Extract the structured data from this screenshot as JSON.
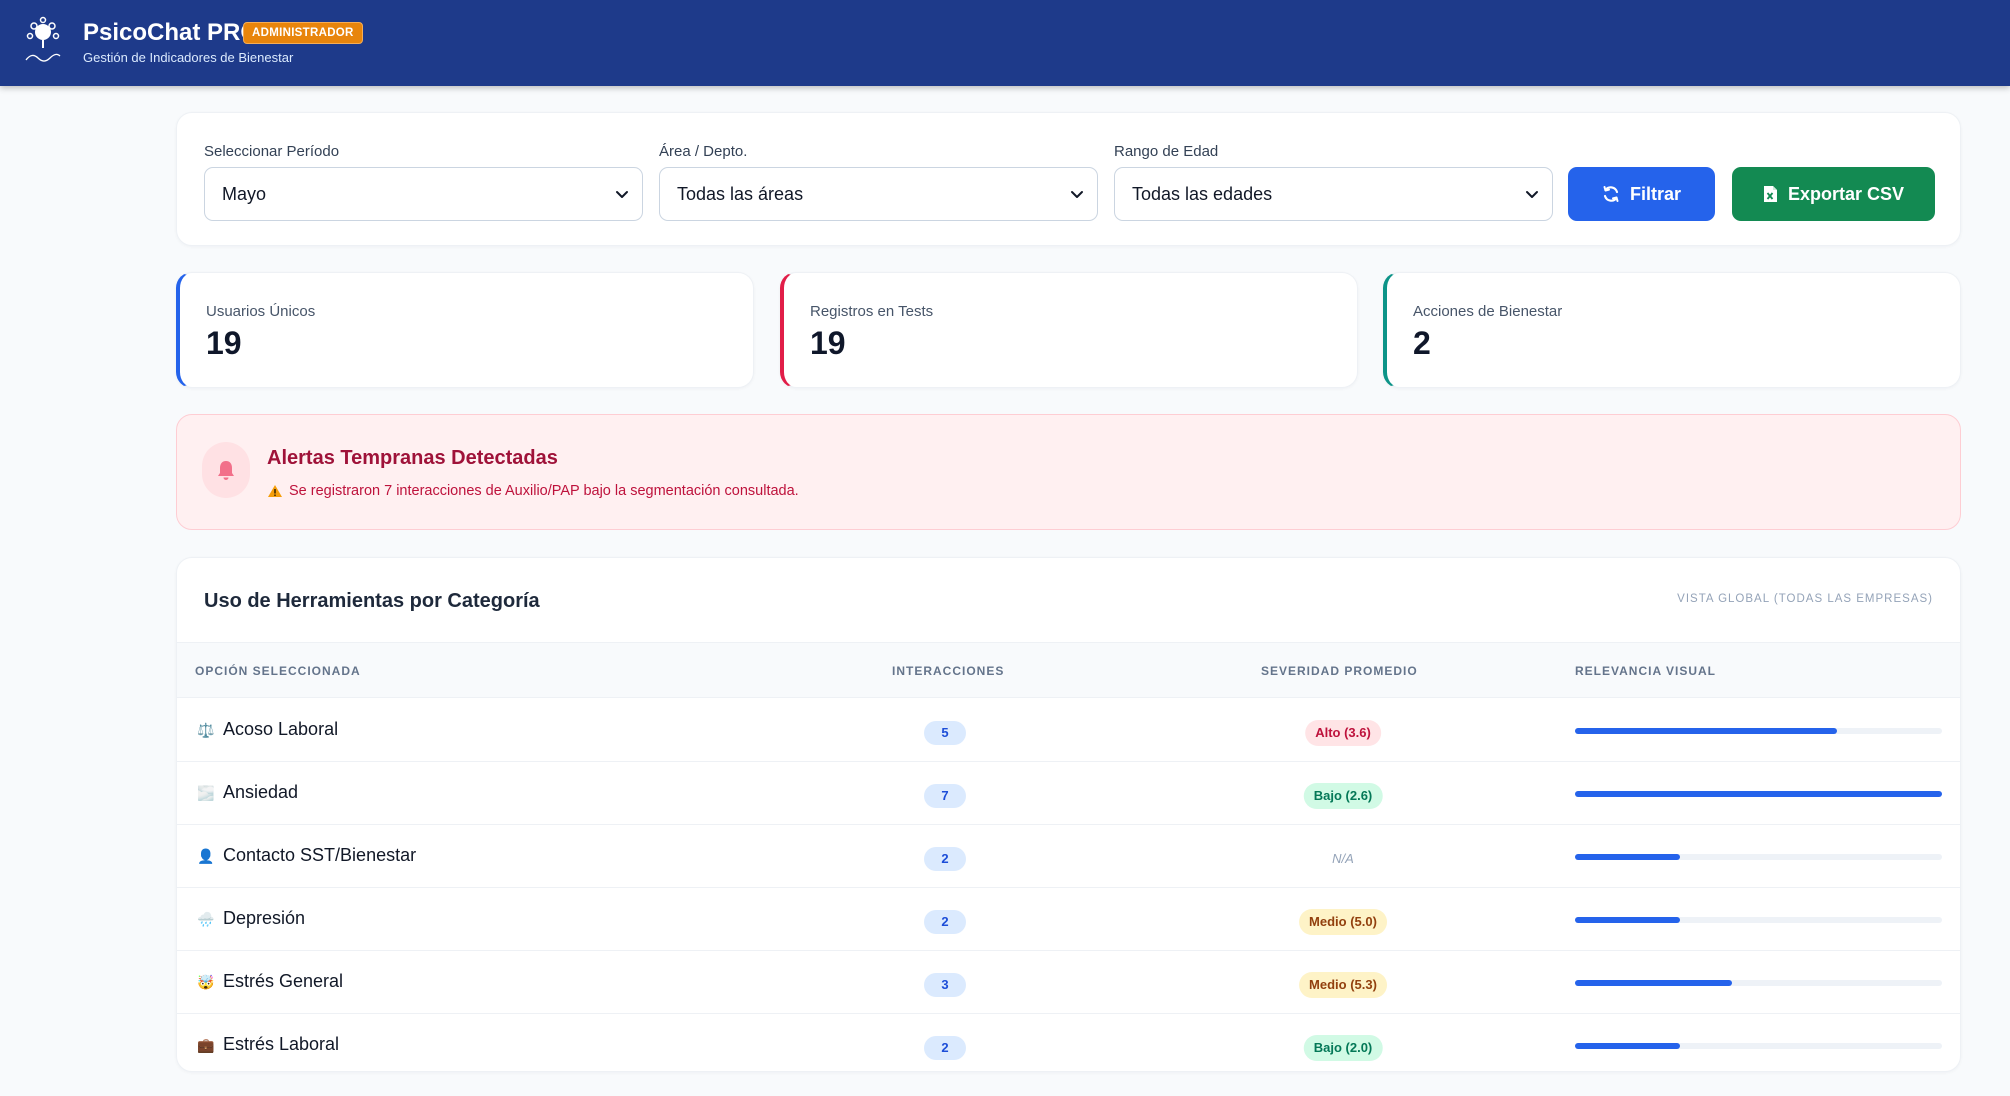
{
  "header": {
    "title": "PsicoChat PRO",
    "role_badge": "ADMINISTRADOR",
    "subtitle": "Gestión de Indicadores de Bienestar",
    "logo_icon": "brain-logo-icon"
  },
  "filters": {
    "period": {
      "label": "Seleccionar Período",
      "value": "Mayo"
    },
    "area": {
      "label": "Área / Depto.",
      "value": "Todas las áreas"
    },
    "age": {
      "label": "Rango de Edad",
      "value": "Todas las edades"
    },
    "filter_button": "Filtrar",
    "export_button": "Exportar CSV"
  },
  "stats": [
    {
      "label": "Usuarios Únicos",
      "value": "19",
      "color": "#2563eb"
    },
    {
      "label": "Registros en Tests",
      "value": "19",
      "color": "#e11d48"
    },
    {
      "label": "Acciones de Bienestar",
      "value": "2",
      "color": "#0d9488"
    }
  ],
  "alert": {
    "title": "Alertas Tempranas Detectadas",
    "message": "Se registraron 7 interacciones de Auxilio/PAP bajo la segmentación consultada.",
    "icon": "bell-icon"
  },
  "tools_table": {
    "title": "Uso de Herramientas por Categoría",
    "scope_note": "VISTA GLOBAL (TODAS LAS EMPRESAS)",
    "columns": [
      "OPCIÓN SELECCIONADA",
      "INTERACCIONES",
      "SEVERIDAD PROMEDIO",
      "RELEVANCIA VISUAL"
    ],
    "rows": [
      {
        "emoji": "⚖️",
        "name": "Acoso Laboral",
        "interactions": "5",
        "severity": "Alto (3.6)",
        "level": "alto",
        "relevance": 0.714
      },
      {
        "emoji": "🌫️",
        "name": "Ansiedad",
        "interactions": "7",
        "severity": "Bajo (2.6)",
        "level": "bajo",
        "relevance": 1.0
      },
      {
        "emoji": "👤",
        "name": "Contacto SST/Bienestar",
        "interactions": "2",
        "severity": "N/A",
        "level": "na",
        "relevance": 0.286
      },
      {
        "emoji": "🌧️",
        "name": "Depresión",
        "interactions": "2",
        "severity": "Medio (5.0)",
        "level": "medio",
        "relevance": 0.286
      },
      {
        "emoji": "🤯",
        "name": "Estrés General",
        "interactions": "3",
        "severity": "Medio (5.3)",
        "level": "medio",
        "relevance": 0.429
      },
      {
        "emoji": "💼",
        "name": "Estrés Laboral",
        "interactions": "2",
        "severity": "Bajo (2.0)",
        "level": "bajo",
        "relevance": 0.286
      }
    ]
  }
}
